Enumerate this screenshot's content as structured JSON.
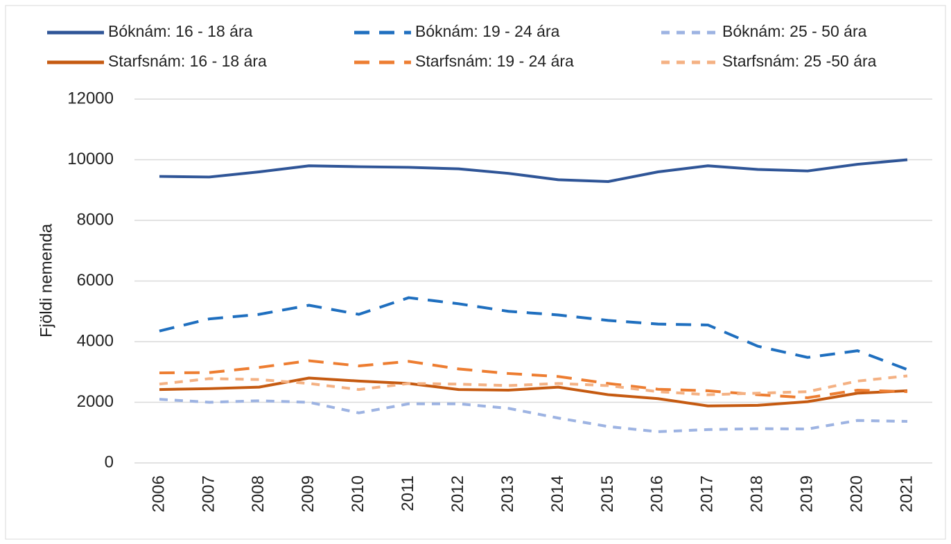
{
  "chart_data": {
    "type": "line",
    "y_label": "Fjöldi nemenda",
    "categories": [
      "2006",
      "2007",
      "2008",
      "2009",
      "2010",
      "2011",
      "2012",
      "2013",
      "2014",
      "2015",
      "2016",
      "2017",
      "2018",
      "2019",
      "2020",
      "2021"
    ],
    "series": [
      {
        "name": "Bóknám: 16 - 18 ára",
        "color": "#2f5597",
        "dash": "solid",
        "values": [
          9450,
          9430,
          9600,
          9800,
          9770,
          9750,
          9700,
          9550,
          9340,
          9280,
          9600,
          9800,
          9680,
          9630,
          9850,
          10000
        ]
      },
      {
        "name": "Bóknám: 19 - 24 ára",
        "color": "#1f6fbf",
        "dash": "long",
        "values": [
          4350,
          4750,
          4900,
          5200,
          4900,
          5450,
          5250,
          5000,
          4880,
          4700,
          4580,
          4550,
          3850,
          3480,
          3700,
          3080
        ]
      },
      {
        "name": "Bóknám: 25 - 50 ára",
        "color": "#9db3e2",
        "dash": "short",
        "values": [
          2100,
          2000,
          2050,
          2000,
          1650,
          1950,
          1950,
          1800,
          1480,
          1200,
          1030,
          1100,
          1130,
          1120,
          1400,
          1370
        ]
      },
      {
        "name": "Starfsnám: 16 - 18 ára",
        "color": "#c55a11",
        "dash": "solid",
        "values": [
          2420,
          2450,
          2500,
          2800,
          2700,
          2620,
          2420,
          2400,
          2500,
          2250,
          2120,
          1880,
          1900,
          2020,
          2300,
          2380
        ]
      },
      {
        "name": "Starfsnám: 19 - 24 ára",
        "color": "#ed7d31",
        "dash": "long",
        "values": [
          2970,
          2980,
          3150,
          3370,
          3200,
          3350,
          3100,
          2950,
          2850,
          2620,
          2430,
          2380,
          2250,
          2150,
          2400,
          2350
        ]
      },
      {
        "name": "Starfsnám: 25 -50 ára",
        "color": "#f4b183",
        "dash": "short",
        "values": [
          2600,
          2780,
          2750,
          2620,
          2420,
          2620,
          2600,
          2550,
          2620,
          2550,
          2350,
          2250,
          2300,
          2350,
          2700,
          2870
        ]
      }
    ],
    "ylim": [
      0,
      12000
    ],
    "yticks": [
      0,
      2000,
      4000,
      6000,
      8000,
      10000,
      12000
    ],
    "grid": true,
    "legend": "top"
  }
}
